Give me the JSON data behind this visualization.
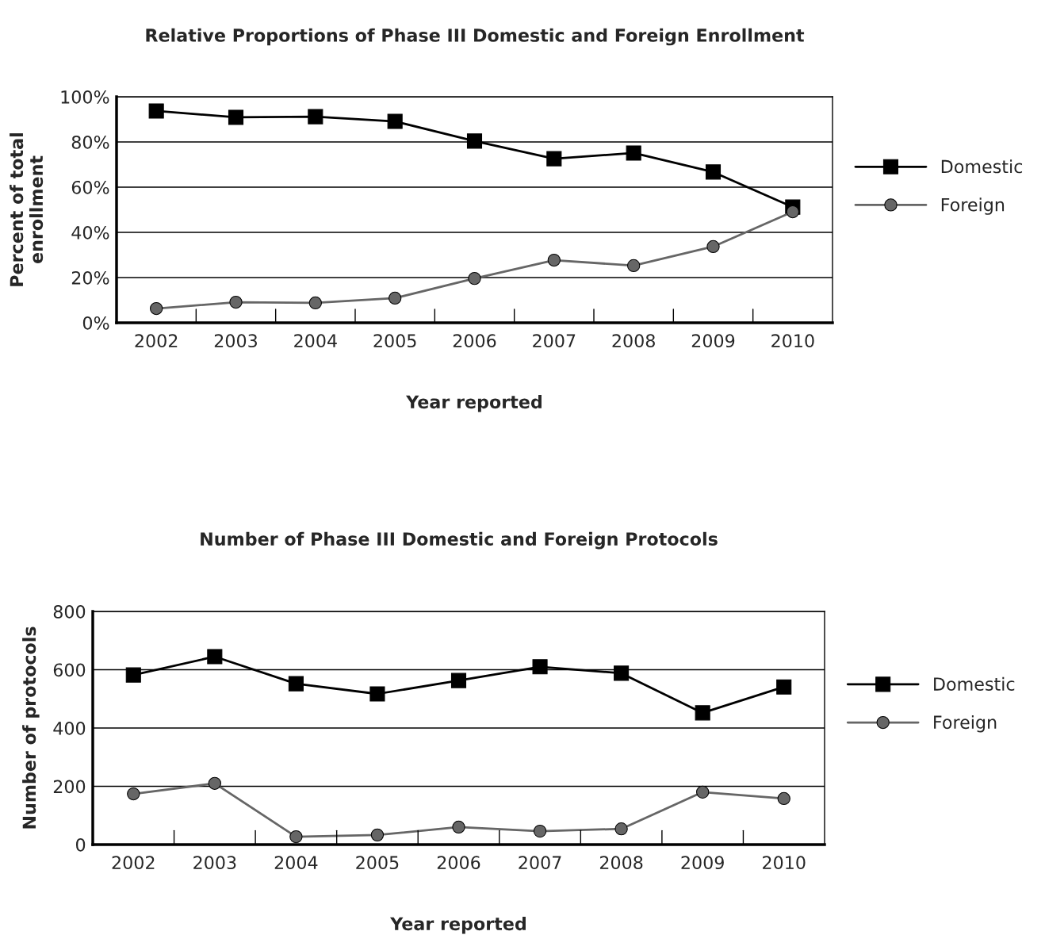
{
  "chart_data": [
    {
      "type": "line",
      "title": "Relative Proportions of Phase III Domestic and Foreign Enrollment",
      "xlabel": "Year reported",
      "ylabel": "Percent of total\nenrollment",
      "categories": [
        "2002",
        "2003",
        "2004",
        "2005",
        "2006",
        "2007",
        "2008",
        "2009",
        "2010"
      ],
      "ylim": [
        0,
        100
      ],
      "yticks": [
        {
          "value": 0,
          "label": "0%"
        },
        {
          "value": 20,
          "label": "20%"
        },
        {
          "value": 40,
          "label": "40%"
        },
        {
          "value": 60,
          "label": "60%"
        },
        {
          "value": 80,
          "label": "80%"
        },
        {
          "value": 100,
          "label": "100%"
        }
      ],
      "grid": "y",
      "legend": "right",
      "series": [
        {
          "name": "Domestic",
          "color": "#000000",
          "marker": "square",
          "values": [
            93.7,
            90.9,
            91.2,
            89.1,
            80.4,
            72.6,
            75.1,
            66.7,
            51.2
          ]
        },
        {
          "name": "Foreign",
          "color": "#666666",
          "marker": "circle",
          "values": [
            6.3,
            9.1,
            8.8,
            10.9,
            19.6,
            27.7,
            25.3,
            33.7,
            49.1
          ]
        }
      ]
    },
    {
      "type": "line",
      "title": "Number of Phase III Domestic and Foreign Protocols",
      "xlabel": "Year reported",
      "ylabel": "Number of protocols",
      "categories": [
        "2002",
        "2003",
        "2004",
        "2005",
        "2006",
        "2007",
        "2008",
        "2009",
        "2010"
      ],
      "ylim": [
        0,
        800
      ],
      "yticks": [
        0,
        200,
        400,
        600,
        800
      ],
      "grid": "y",
      "legend": "right",
      "series": [
        {
          "name": "Domestic",
          "color": "#000000",
          "marker": "square",
          "values": [
            582,
            645,
            552,
            517,
            563,
            610,
            588,
            452,
            541
          ]
        },
        {
          "name": "Foreign",
          "color": "#666666",
          "marker": "circle",
          "values": [
            174,
            210,
            27,
            33,
            60,
            46,
            54,
            180,
            158
          ]
        }
      ]
    }
  ]
}
